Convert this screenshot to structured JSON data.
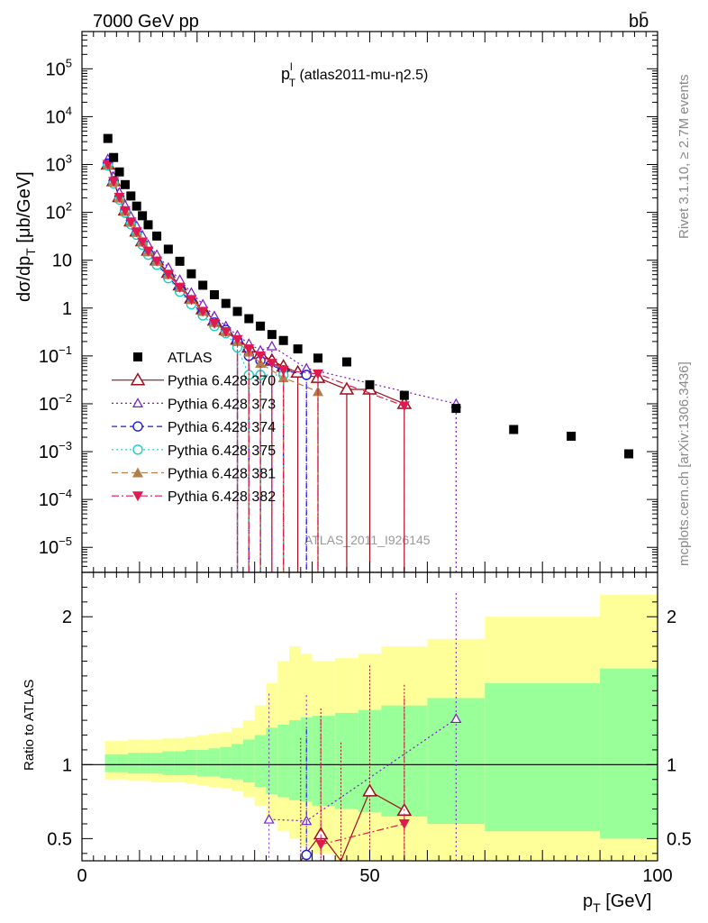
{
  "header": {
    "left": "7000 GeV pp",
    "right": "bb̄"
  },
  "side_labels": {
    "rivet": "Rivet 3.1.10, ≥ 2.7M events",
    "mcplots": "mcplots.cern.ch [arXiv:1306.3436]"
  },
  "watermark": "ATLAS_2011_I926145",
  "title": {
    "main": "p",
    "sup": "l",
    "sub": "T",
    "rest": " (atlas2011-mu-η2.5)"
  },
  "axes": {
    "y_main_label": "dσ/dp",
    "y_main_sub": "T",
    "y_main_unit": " [μb/GeV]",
    "y_ratio_label": "Ratio to ATLAS",
    "x_label": "p",
    "x_sub": "T",
    "x_unit": " [GeV]"
  },
  "ticks": {
    "x": [
      {
        "v": 0,
        "t": "0"
      },
      {
        "v": 50,
        "t": "50"
      },
      {
        "v": 100,
        "t": "100"
      }
    ],
    "y_main": [
      {
        "e": 5,
        "t": "10",
        "sup": "5"
      },
      {
        "e": 4,
        "t": "10",
        "sup": "4"
      },
      {
        "e": 3,
        "t": "10",
        "sup": "3"
      },
      {
        "e": 2,
        "t": "10",
        "sup": "2"
      },
      {
        "e": 1,
        "t": "10",
        "sup": ""
      },
      {
        "e": 0,
        "t": "1",
        "sup": ""
      },
      {
        "e": -1,
        "t": "10",
        "sup": "−1"
      },
      {
        "e": -2,
        "t": "10",
        "sup": "−2"
      },
      {
        "e": -3,
        "t": "10",
        "sup": "−3"
      },
      {
        "e": -4,
        "t": "10",
        "sup": "−4"
      },
      {
        "e": -5,
        "t": "10",
        "sup": "−5"
      }
    ],
    "y_ratio": [
      {
        "v": 0.5,
        "t": "0.5"
      },
      {
        "v": 1,
        "t": "1"
      },
      {
        "v": 2,
        "t": "2"
      }
    ]
  },
  "colors": {
    "atlas": "#000000",
    "p370": "#9a0f1a",
    "p373": "#7a1ad0",
    "p374": "#1a1ae0",
    "p375": "#18d0c0",
    "p381": "#b0804a",
    "p382": "#e01a50",
    "band_green": "#99ff99",
    "band_yellow": "#ffff99"
  },
  "chart_data": {
    "type": "scatter",
    "x_range": [
      0,
      100
    ],
    "y_main_log_range": [
      3e-06,
      600000.0
    ],
    "y_ratio_range": [
      0.35,
      2.3
    ],
    "legend_position": "lower-left",
    "series": [
      {
        "id": "atlas",
        "name": "ATLAS",
        "x": [
          4.5,
          5.5,
          6.5,
          7.5,
          8.5,
          9.5,
          10.5,
          11.5,
          13,
          15,
          17,
          19,
          21,
          23,
          25,
          27,
          29,
          31,
          33,
          35,
          37.5,
          41,
          46,
          50,
          56,
          65,
          75,
          85,
          95
        ],
        "y": [
          3500,
          1400,
          700,
          380,
          220,
          135,
          85,
          55,
          32,
          17,
          9.5,
          5.2,
          3.0,
          1.9,
          1.25,
          0.85,
          0.6,
          0.42,
          0.28,
          0.21,
          0.14,
          0.09,
          0.075,
          0.025,
          0.015,
          0.008,
          0.0029,
          0.0021,
          0.0009
        ]
      },
      {
        "id": "p370",
        "name": "Pythia 6.428 370",
        "x": [
          4.5,
          5.5,
          6.5,
          7.5,
          8.5,
          9.5,
          10.5,
          11.5,
          13,
          15,
          17,
          19,
          21,
          23,
          25,
          27,
          29,
          31,
          33,
          35,
          37.5,
          41,
          46,
          50,
          56
        ],
        "y": [
          1000,
          450,
          210,
          110,
          65,
          40,
          25,
          16,
          10,
          5.5,
          3.0,
          1.6,
          0.95,
          0.55,
          0.35,
          0.22,
          0.15,
          0.11,
          0.08,
          0.06,
          0.045,
          0.035,
          0.02,
          0.02,
          0.01
        ]
      },
      {
        "id": "p373",
        "name": "Pythia 6.428 373",
        "x": [
          4.5,
          5.5,
          6.5,
          7.5,
          8.5,
          9.5,
          10.5,
          11.5,
          13,
          15,
          17,
          19,
          21,
          23,
          25,
          27,
          29,
          31,
          33,
          39,
          65
        ],
        "y": [
          1300,
          560,
          260,
          140,
          82,
          52,
          33,
          21,
          13,
          7,
          3.9,
          2.1,
          1.2,
          0.68,
          0.42,
          0.27,
          0.18,
          0.13,
          0.16,
          0.055,
          0.01
        ]
      },
      {
        "id": "p374",
        "name": "Pythia 6.428 374",
        "x": [
          4.5,
          5.5,
          6.5,
          7.5,
          8.5,
          9.5,
          10.5,
          11.5,
          13,
          15,
          17,
          19,
          21,
          23,
          25,
          27,
          29,
          31,
          35,
          39
        ],
        "y": [
          1050,
          450,
          200,
          105,
          60,
          36,
          22,
          14,
          8.5,
          4.5,
          2.4,
          1.3,
          0.75,
          0.5,
          0.35,
          0.2,
          0.1,
          0.08,
          0.05,
          0.04
        ]
      },
      {
        "id": "p375",
        "name": "Pythia 6.428 375",
        "x": [
          4.5,
          5.5,
          6.5,
          7.5,
          8.5,
          9.5,
          10.5,
          11.5,
          13,
          15,
          17,
          19,
          21,
          23,
          25,
          27,
          29,
          31,
          35
        ],
        "y": [
          950,
          400,
          185,
          98,
          56,
          34,
          21,
          13,
          8,
          4.2,
          2.2,
          1.2,
          0.7,
          0.42,
          0.3,
          0.15,
          0.04,
          0.04,
          0.04
        ]
      },
      {
        "id": "p381",
        "name": "Pythia 6.428 381",
        "x": [
          4.5,
          5.5,
          6.5,
          7.5,
          8.5,
          9.5,
          10.5,
          11.5,
          13,
          15,
          17,
          19,
          21,
          23,
          25,
          27,
          29,
          31,
          35,
          41
        ],
        "y": [
          1000,
          430,
          200,
          105,
          62,
          38,
          24,
          15,
          9.5,
          5,
          2.7,
          1.5,
          0.85,
          0.5,
          0.32,
          0.2,
          0.12,
          0.07,
          0.035,
          0.018
        ]
      },
      {
        "id": "p382",
        "name": "Pythia 6.428 382",
        "x": [
          4.5,
          5.5,
          6.5,
          7.5,
          8.5,
          9.5,
          10.5,
          11.5,
          13,
          15,
          17,
          19,
          21,
          23,
          25,
          27,
          29,
          31,
          33,
          35,
          41,
          56
        ],
        "y": [
          1000,
          440,
          205,
          108,
          63,
          39,
          24,
          15.5,
          9.6,
          5.1,
          2.7,
          1.5,
          0.85,
          0.48,
          0.32,
          0.22,
          0.14,
          0.1,
          0.07,
          0.05,
          0.042,
          0.009
        ]
      }
    ],
    "ratio_series": [
      {
        "id": "p370",
        "x": [
          38,
          41.5,
          45,
          50,
          56
        ],
        "y": [
          0.33,
          0.53,
          0.3,
          0.82,
          0.69
        ]
      },
      {
        "id": "p373",
        "x": [
          32.5,
          39,
          65
        ],
        "y": [
          0.63,
          0.62,
          1.31
        ]
      },
      {
        "id": "p374",
        "x": [
          39
        ],
        "y": [
          0.39
        ]
      },
      {
        "id": "p382",
        "x": [
          41.5,
          56
        ],
        "y": [
          0.46,
          0.6
        ]
      }
    ],
    "bands": {
      "edges": [
        4,
        6,
        8,
        10,
        12,
        14,
        16,
        18,
        20,
        22,
        24,
        26,
        28,
        30,
        32,
        34,
        36,
        38,
        40,
        44,
        48,
        52,
        60,
        70,
        90,
        100
      ],
      "green_lo": [
        0.95,
        0.95,
        0.94,
        0.94,
        0.94,
        0.93,
        0.93,
        0.93,
        0.92,
        0.92,
        0.91,
        0.9,
        0.88,
        0.85,
        0.8,
        0.78,
        0.76,
        0.75,
        0.72,
        0.7,
        0.68,
        0.65,
        0.6,
        0.55,
        0.5
      ],
      "green_hi": [
        1.07,
        1.07,
        1.08,
        1.08,
        1.08,
        1.09,
        1.09,
        1.1,
        1.1,
        1.11,
        1.12,
        1.14,
        1.17,
        1.2,
        1.25,
        1.27,
        1.3,
        1.32,
        1.33,
        1.35,
        1.37,
        1.4,
        1.45,
        1.55,
        1.65
      ],
      "yellow_lo": [
        0.9,
        0.9,
        0.89,
        0.89,
        0.88,
        0.88,
        0.88,
        0.87,
        0.86,
        0.85,
        0.84,
        0.82,
        0.78,
        0.72,
        0.62,
        0.55,
        0.5,
        0.45,
        0.4,
        0.35,
        0.3,
        0.25,
        0.2,
        0.15,
        0.1
      ],
      "yellow_hi": [
        1.16,
        1.16,
        1.17,
        1.17,
        1.17,
        1.18,
        1.18,
        1.19,
        1.2,
        1.21,
        1.22,
        1.25,
        1.3,
        1.4,
        1.55,
        1.7,
        1.8,
        1.75,
        1.7,
        1.72,
        1.75,
        1.8,
        1.85,
        2.0,
        2.15
      ]
    }
  }
}
